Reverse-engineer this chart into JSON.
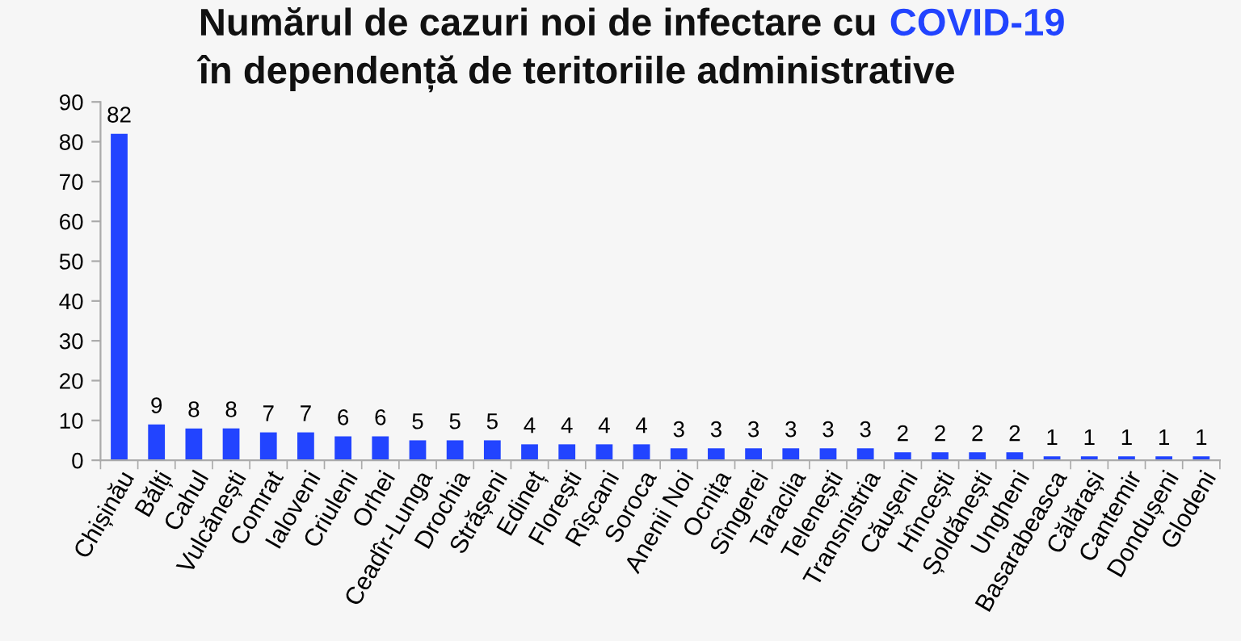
{
  "chart_data": {
    "type": "bar",
    "title": "Numărul de cazuri noi de infectare cu COVID-19",
    "subtitle": "în dependență de teritoriile administrative",
    "categories": [
      "Chișinău",
      "Bălți",
      "Cahul",
      "Vulcănești",
      "Comrat",
      "Ialoveni",
      "Criuleni",
      "Orhei",
      "Ceadîr-Lunga",
      "Drochia",
      "Strășeni",
      "Edineț",
      "Florești",
      "Rîșcani",
      "Soroca",
      "Anenii Noi",
      "Ocnița",
      "Sîngerei",
      "Taraclia",
      "Telenești",
      "Transnistria",
      "Căușeni",
      "Hîncești",
      "Șoldănești",
      "Ungheni",
      "Basarabeasca",
      "Călărași",
      "Cantemir",
      "Dondușeni",
      "Glodeni"
    ],
    "values": [
      82,
      9,
      8,
      8,
      7,
      7,
      6,
      6,
      5,
      5,
      5,
      4,
      4,
      4,
      4,
      3,
      3,
      3,
      3,
      3,
      3,
      2,
      2,
      2,
      2,
      1,
      1,
      1,
      1,
      1
    ],
    "color": "#2244ff",
    "ylim": [
      0,
      90
    ],
    "yticks": [
      0,
      10,
      20,
      30,
      40,
      50,
      60,
      70,
      80,
      90
    ],
    "data_labels": true,
    "grid": false,
    "legend": false
  }
}
